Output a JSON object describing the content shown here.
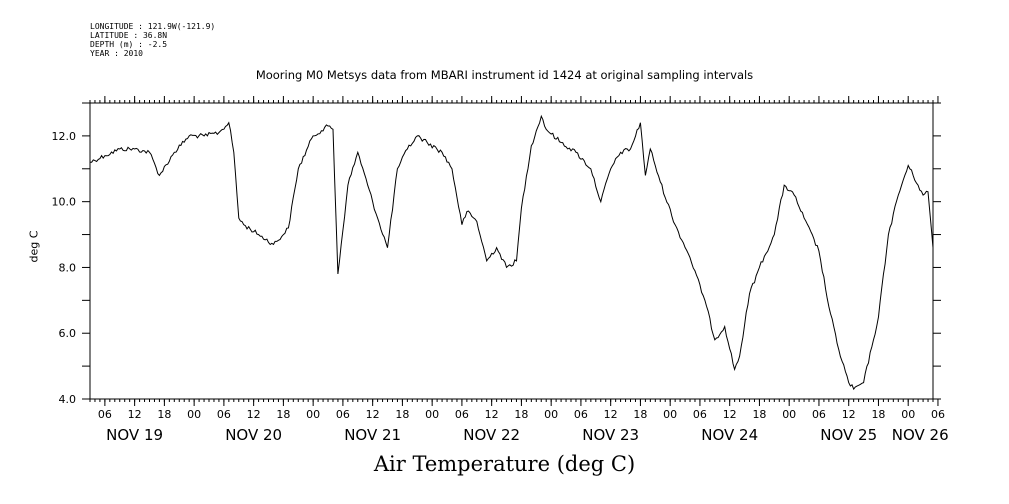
{
  "header": {
    "longitude": "LONGITUDE : 121.9W(-121.9)",
    "latitude": "LATITUDE : 36.8N",
    "depth": "DEPTH (m) : -2.5",
    "year": "YEAR : 2010"
  },
  "chart_data": {
    "type": "line",
    "title": "Mooring M0 Metsys data from MBARI instrument id 1424 at original sampling intervals",
    "xlabel": "Air Temperature (deg C)",
    "ylabel": "deg C",
    "ylim": [
      4.0,
      13.0
    ],
    "y_ticks": [
      "4.0",
      "6.0",
      "8.0",
      "10.0",
      "12.0"
    ],
    "xlim": [
      "2010-11-19T03:00",
      "2010-11-26T05:00"
    ],
    "hour_ticks": [
      "06",
      "12",
      "18",
      "00",
      "06",
      "12",
      "18",
      "00",
      "06",
      "12",
      "18",
      "00",
      "06",
      "12",
      "18",
      "00",
      "06",
      "12",
      "18",
      "00",
      "06",
      "12",
      "18",
      "00",
      "06",
      "12",
      "18",
      "00",
      "06"
    ],
    "day_labels": [
      "NOV 19",
      "NOV 20",
      "NOV 21",
      "NOV 22",
      "NOV 23",
      "NOV 24",
      "NOV 25",
      "NOV 26"
    ],
    "grid": false,
    "series": [
      {
        "x": [
          "2010-11-19T03:00",
          "2010-11-19T06:00",
          "2010-11-19T09:00",
          "2010-11-19T12:00",
          "2010-11-19T15:00",
          "2010-11-19T17:00",
          "2010-11-19T20:00",
          "2010-11-19T23:00",
          "2010-11-20T02:00",
          "2010-11-20T05:00",
          "2010-11-20T07:00",
          "2010-11-20T08:00",
          "2010-11-20T09:00",
          "2010-11-20T10:00",
          "2010-11-20T13:00",
          "2010-11-20T16:00",
          "2010-11-20T18:00",
          "2010-11-20T19:00",
          "2010-11-20T21:00",
          "2010-11-21T00:00",
          "2010-11-21T03:00",
          "2010-11-21T04:00",
          "2010-11-21T05:00",
          "2010-11-21T07:00",
          "2010-11-21T09:00",
          "2010-11-21T11:00",
          "2010-11-21T13:00",
          "2010-11-21T15:00",
          "2010-11-21T17:00",
          "2010-11-21T19:00",
          "2010-11-21T21:00",
          "2010-11-21T23:00",
          "2010-11-22T02:00",
          "2010-11-22T04:00",
          "2010-11-22T06:00",
          "2010-11-22T07:00",
          "2010-11-22T09:00",
          "2010-11-22T11:00",
          "2010-11-22T13:00",
          "2010-11-22T15:00",
          "2010-11-22T17:00",
          "2010-11-22T18:00",
          "2010-11-22T20:00",
          "2010-11-22T22:00",
          "2010-11-22T23:00",
          "2010-11-23T02:00",
          "2010-11-23T05:00",
          "2010-11-23T08:00",
          "2010-11-23T10:00",
          "2010-11-23T12:00",
          "2010-11-23T14:00",
          "2010-11-23T16:00",
          "2010-11-23T18:00",
          "2010-11-23T19:00",
          "2010-11-23T20:00",
          "2010-11-23T22:00",
          "2010-11-24T01:00",
          "2010-11-24T04:00",
          "2010-11-24T07:00",
          "2010-11-24T09:00",
          "2010-11-24T11:00",
          "2010-11-24T13:00",
          "2010-11-24T14:00",
          "2010-11-24T16:00",
          "2010-11-24T18:00",
          "2010-11-24T21:00",
          "2010-11-24T23:00",
          "2010-11-25T01:00",
          "2010-11-25T03:00",
          "2010-11-25T06:00",
          "2010-11-25T08:00",
          "2010-11-25T10:00",
          "2010-11-25T12:00",
          "2010-11-25T13:00",
          "2010-11-25T15:00",
          "2010-11-25T17:00",
          "2010-11-25T18:00",
          "2010-11-25T20:00",
          "2010-11-25T22:00",
          "2010-11-26T00:00",
          "2010-11-26T02:00",
          "2010-11-26T03:00",
          "2010-11-26T04:00",
          "2010-11-26T05:00"
        ],
        "y": [
          11.2,
          11.4,
          11.6,
          11.6,
          11.5,
          10.8,
          11.5,
          12.0,
          12.0,
          12.1,
          12.4,
          11.5,
          9.5,
          9.3,
          9.0,
          8.7,
          9.0,
          9.2,
          11.0,
          12.0,
          12.3,
          12.2,
          7.8,
          10.5,
          11.5,
          10.5,
          9.5,
          8.6,
          11.0,
          11.6,
          12.0,
          11.8,
          11.5,
          11.0,
          9.3,
          9.7,
          9.4,
          8.2,
          8.6,
          8.0,
          8.2,
          9.8,
          11.7,
          12.6,
          12.2,
          11.8,
          11.5,
          11.0,
          10.0,
          11.0,
          11.5,
          11.6,
          12.4,
          10.8,
          11.6,
          10.6,
          9.3,
          8.3,
          7.0,
          5.8,
          6.2,
          4.9,
          5.3,
          7.2,
          8.0,
          9.0,
          10.5,
          10.2,
          9.5,
          8.5,
          6.8,
          5.5,
          4.5,
          4.3,
          4.5,
          5.8,
          6.5,
          9.0,
          10.2,
          11.1,
          10.5,
          10.2,
          10.3,
          8.6
        ]
      }
    ]
  }
}
